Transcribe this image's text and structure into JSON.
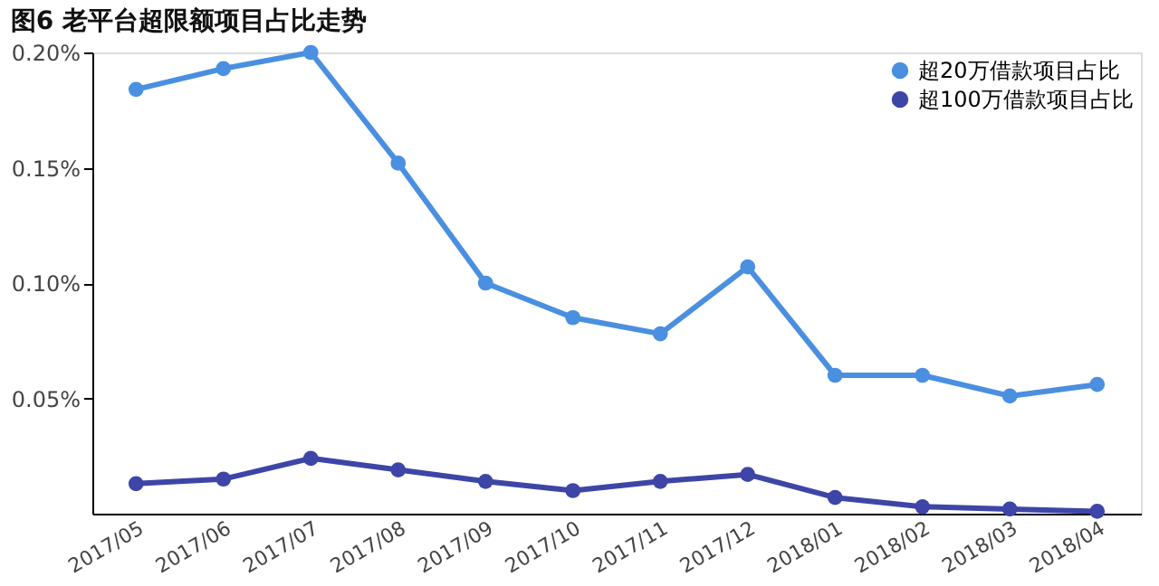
{
  "chart_data": {
    "type": "line",
    "title": "图6 老平台超限额项目占比走势",
    "categories": [
      "2017/05",
      "2017/06",
      "2017/07",
      "2017/08",
      "2017/09",
      "2017/10",
      "2017/11",
      "2017/12",
      "2018/01",
      "2018/02",
      "2018/03",
      "2018/04"
    ],
    "series": [
      {
        "name": "超20万借款项目占比",
        "color": "#4a8fe0",
        "values": [
          0.184,
          0.193,
          0.2,
          0.152,
          0.1,
          0.085,
          0.078,
          0.107,
          0.06,
          0.06,
          0.051,
          0.056
        ]
      },
      {
        "name": "超100万借款项目占比",
        "color": "#3d46a6",
        "values": [
          0.013,
          0.015,
          0.024,
          0.019,
          0.014,
          0.01,
          0.014,
          0.017,
          0.007,
          0.003,
          0.002,
          0.001
        ]
      }
    ],
    "ylim": [
      0,
      0.2
    ],
    "yticks": [
      {
        "value": 0.05,
        "label": "0.05%"
      },
      {
        "value": 0.1,
        "label": "0.10%"
      },
      {
        "value": 0.15,
        "label": "0.15%"
      },
      {
        "value": 0.2,
        "label": "0.20%"
      }
    ],
    "grid": false,
    "legend": "top right",
    "marker": "circle",
    "line_style": "solid"
  }
}
